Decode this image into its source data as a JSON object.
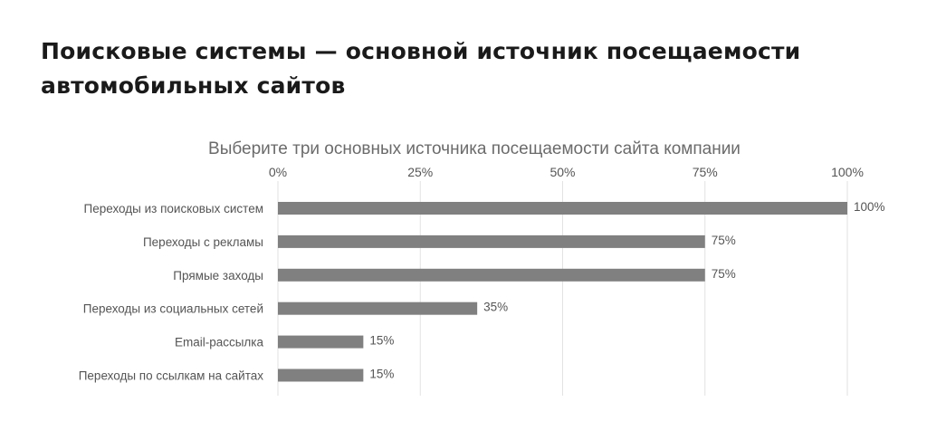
{
  "headline": {
    "line1": "Поисковые системы — основной источник посещаемости",
    "line2": "автомобильных сайтов"
  },
  "chart_data": {
    "type": "bar",
    "orientation": "horizontal",
    "title": "Выберите три основных источника посещаемости сайта компании",
    "categories": [
      "Переходы из поисковых систем",
      "Переходы с рекламы",
      "Прямые заходы",
      "Переходы из социальных сетей",
      "Email-рассылка",
      "Переходы по ссылкам на сайтах"
    ],
    "values": [
      100,
      75,
      75,
      35,
      15,
      15
    ],
    "value_labels": [
      "100%",
      "75%",
      "75%",
      "35%",
      "15%",
      "15%"
    ],
    "xlim": [
      0,
      100
    ],
    "x_ticks": [
      0,
      25,
      50,
      75,
      100
    ],
    "x_tick_labels": [
      "0%",
      "25%",
      "50%",
      "75%",
      "100%"
    ],
    "x_axis_position": "top",
    "grid": true,
    "bar_color": "#808080",
    "grid_color": "#e2e2e2"
  }
}
